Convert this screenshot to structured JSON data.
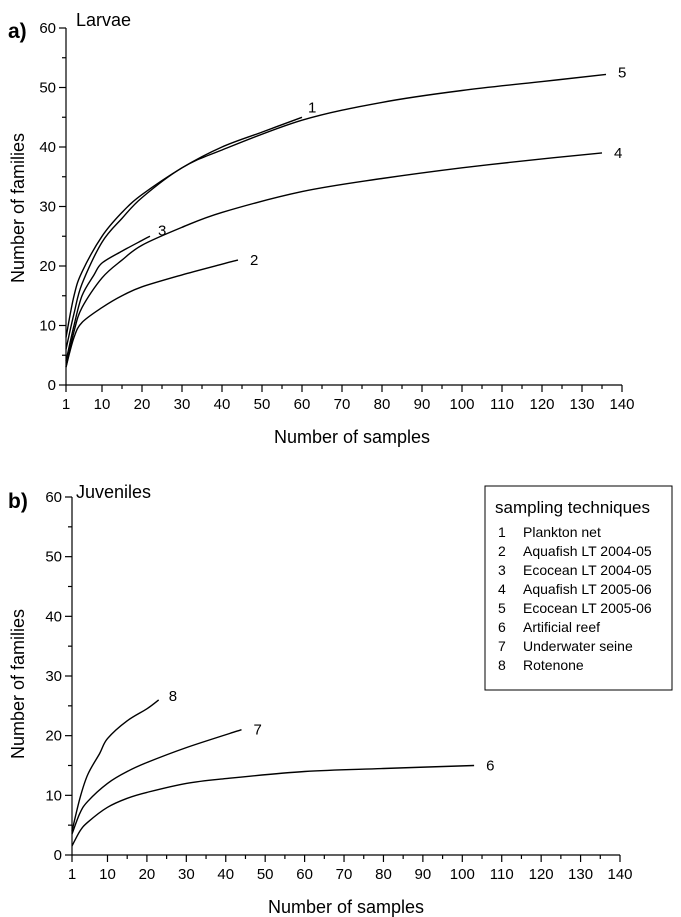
{
  "chart_data": [
    {
      "panel": "a)",
      "title": "Larvae",
      "type": "line",
      "xlabel": "Number of samples",
      "ylabel": "Number of families",
      "xlim": [
        1,
        140
      ],
      "ylim": [
        0,
        60
      ],
      "xticks": [
        "1",
        "10",
        "20",
        "30",
        "40",
        "50",
        "60",
        "70",
        "80",
        "90",
        "100",
        "110",
        "120",
        "130",
        "140"
      ],
      "yticks": [
        "0",
        "10",
        "20",
        "30",
        "40",
        "50",
        "60"
      ],
      "series": [
        {
          "name": "1",
          "x": [
            1,
            3,
            5,
            10,
            15,
            20,
            30,
            40,
            50,
            60
          ],
          "y": [
            8,
            15,
            19,
            25,
            29,
            32,
            36.5,
            40,
            42.5,
            45
          ]
        },
        {
          "name": "2",
          "x": [
            1,
            3,
            5,
            10,
            15,
            20,
            30,
            40,
            44
          ],
          "y": [
            3,
            8,
            10.5,
            13,
            15,
            16.5,
            18.5,
            20.3,
            21
          ]
        },
        {
          "name": "3",
          "x": [
            1,
            3,
            5,
            8,
            10,
            15,
            20,
            22
          ],
          "y": [
            4,
            10,
            15,
            18.5,
            20.5,
            22.5,
            24.3,
            25
          ]
        },
        {
          "name": "4",
          "x": [
            1,
            3,
            5,
            10,
            15,
            20,
            30,
            40,
            60,
            80,
            100,
            120,
            135
          ],
          "y": [
            3,
            9,
            13,
            18,
            21,
            23.5,
            26.5,
            29,
            32.5,
            34.7,
            36.5,
            38,
            39
          ]
        },
        {
          "name": "5",
          "x": [
            1,
            3,
            5,
            10,
            15,
            20,
            30,
            40,
            60,
            80,
            100,
            120,
            136
          ],
          "y": [
            6,
            12,
            17,
            24,
            28,
            31.5,
            36.5,
            39.5,
            44.5,
            47.5,
            49.5,
            51,
            52.2
          ]
        }
      ]
    },
    {
      "panel": "b)",
      "title": "Juveniles",
      "type": "line",
      "xlabel": "Number of samples",
      "ylabel": "Number of families",
      "xlim": [
        1,
        140
      ],
      "ylim": [
        0,
        60
      ],
      "xticks": [
        "1",
        "10",
        "20",
        "30",
        "40",
        "50",
        "60",
        "70",
        "80",
        "90",
        "100",
        "110",
        "120",
        "130",
        "140"
      ],
      "yticks": [
        "0",
        "10",
        "20",
        "30",
        "40",
        "50",
        "60"
      ],
      "series": [
        {
          "name": "6",
          "x": [
            1,
            3,
            5,
            10,
            15,
            20,
            30,
            40,
            60,
            80,
            103
          ],
          "y": [
            1.5,
            4,
            5.5,
            8,
            9.5,
            10.5,
            12,
            12.8,
            14,
            14.5,
            15
          ]
        },
        {
          "name": "7",
          "x": [
            1,
            3,
            5,
            10,
            15,
            20,
            30,
            44
          ],
          "y": [
            3.5,
            7,
            9,
            12,
            14,
            15.5,
            18,
            21
          ]
        },
        {
          "name": "8",
          "x": [
            1,
            3,
            5,
            8,
            10,
            15,
            20,
            23
          ],
          "y": [
            4,
            9.5,
            13.5,
            17,
            19.5,
            22.5,
            24.5,
            26
          ]
        }
      ],
      "legend": {
        "title": "sampling techniques",
        "placement": "top-right",
        "entries": [
          {
            "num": "1",
            "label": "Plankton net"
          },
          {
            "num": "2",
            "label": "Aquafish LT 2004-05"
          },
          {
            "num": "3",
            "label": "Ecocean LT 2004-05"
          },
          {
            "num": "4",
            "label": "Aquafish LT 2005-06"
          },
          {
            "num": "5",
            "label": "Ecocean LT 2005-06"
          },
          {
            "num": "6",
            "label": "Artificial reef"
          },
          {
            "num": "7",
            "label": "Underwater seine"
          },
          {
            "num": "8",
            "label": "Rotenone"
          }
        ]
      }
    }
  ]
}
